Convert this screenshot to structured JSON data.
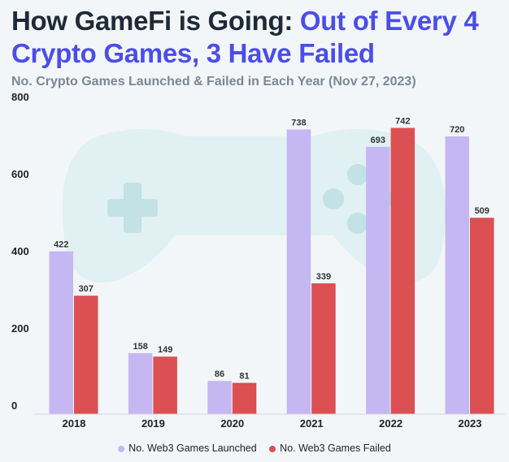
{
  "header": {
    "title_part1": "How GameFi is Going: ",
    "title_part2": "Out of Every 4 Crypto Games, 3 Have Failed",
    "subtitle": "No. Crypto Games Launched & Failed in Each Year (Nov 27, 2023)"
  },
  "chart_data": {
    "type": "bar",
    "categories": [
      "2018",
      "2019",
      "2020",
      "2021",
      "2022",
      "2023"
    ],
    "series": [
      {
        "name": "No. Web3 Games Launched",
        "values": [
          422,
          158,
          86,
          738,
          693,
          720
        ],
        "color": "#c5b8f2"
      },
      {
        "name": "No. Web3 Games Failed",
        "values": [
          307,
          149,
          81,
          339,
          742,
          509
        ],
        "color": "#dc4f52"
      }
    ],
    "ylim": [
      0,
      800
    ],
    "yticks": [
      0,
      200,
      400,
      600,
      800
    ],
    "grid": false,
    "legend": "bottom-center"
  },
  "colors": {
    "accent": "#4a4ee8",
    "background": "#f3f6f9",
    "watermark": "#d9eef0"
  },
  "watermark_icon": "gamepad-icon"
}
